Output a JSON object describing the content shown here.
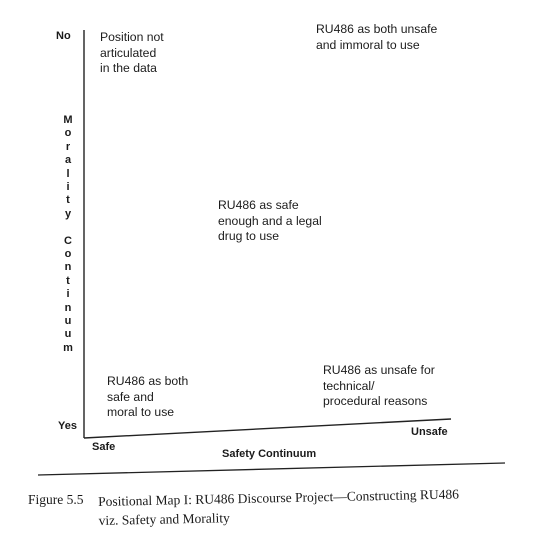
{
  "map": {
    "y_axis": {
      "top_label": "No",
      "bottom_label": "Yes",
      "title_part1": "Morality",
      "title_part2": "Continuum"
    },
    "x_axis": {
      "left_label": "Safe",
      "right_label": "Unsafe",
      "title": "Safety Continuum"
    },
    "positions": {
      "top_left": "Position not\narticulated\nin the data",
      "top_right": "RU486 as both unsafe\nand immoral to use",
      "center": "RU486 as safe\nenough and a legal\ndrug to use",
      "bottom_left": "RU486 as both\nsafe and\nmoral to use",
      "bottom_right": "RU486 as unsafe for\ntechnical/\nprocedural reasons"
    }
  },
  "caption": {
    "label": "Figure 5.5",
    "text": "Positional Map I: RU486 Discourse Project—Constructing RU486\nviz. Safety and Morality"
  },
  "colors": {
    "ink": "#1a1a1a",
    "paper": "#ffffff"
  }
}
